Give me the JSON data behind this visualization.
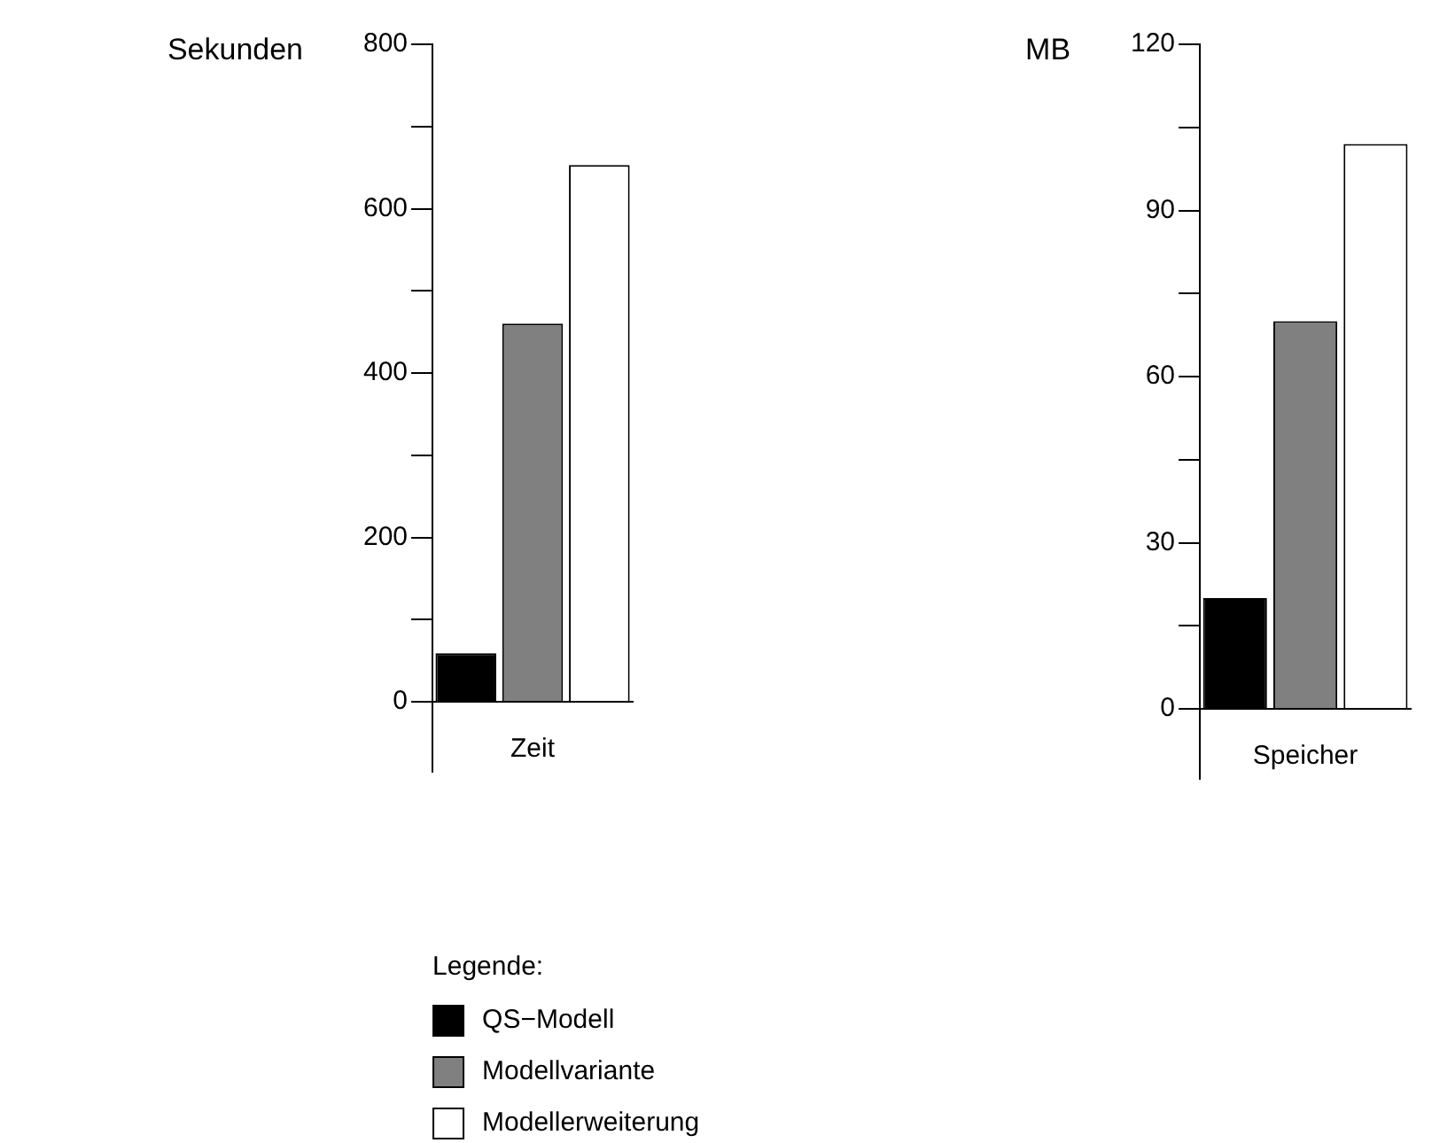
{
  "chart_data": [
    {
      "type": "bar",
      "categories": [
        "Zeit"
      ],
      "ylabel": "Sekunden",
      "ylim": [
        0,
        800
      ],
      "yticks": [
        0,
        {
          "value": 100,
          "label": null
        },
        200,
        {
          "value": 300,
          "label": null
        },
        400,
        {
          "value": 500,
          "label": null
        },
        600,
        {
          "value": 700,
          "label": null
        },
        800
      ],
      "grid": false,
      "legend": "bottom",
      "legend_title": "Legende:",
      "series": [
        {
          "name": "QS−Modell",
          "color": "#000000",
          "values": [
            59
          ]
        },
        {
          "name": "Modellvariante",
          "color": "#808080",
          "values": [
            460
          ]
        },
        {
          "name": "Modellerweiterung",
          "color": "#ffffff",
          "values": [
            653
          ]
        }
      ]
    },
    {
      "type": "bar",
      "categories": [
        "Speicher"
      ],
      "ylabel": "MB",
      "ylim": [
        0,
        120
      ],
      "yticks": [
        0,
        {
          "value": 15,
          "label": null
        },
        30,
        {
          "value": 45,
          "label": null
        },
        60,
        {
          "value": 75,
          "label": null
        },
        90,
        {
          "value": 105,
          "label": null
        },
        120
      ],
      "grid": false,
      "series": [
        {
          "color": "#000000",
          "values": [
            20
          ]
        },
        {
          "color": "#808080",
          "values": [
            70
          ]
        },
        {
          "color": "#ffffff",
          "values": [
            102
          ]
        }
      ]
    }
  ]
}
